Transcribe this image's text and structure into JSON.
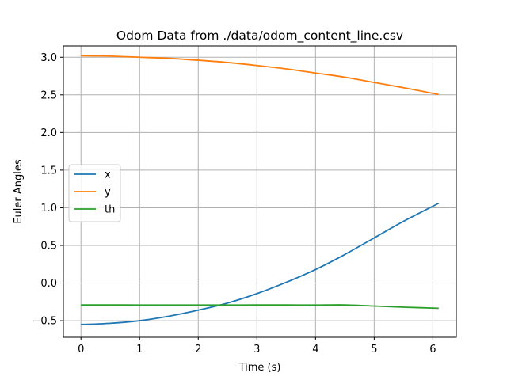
{
  "chart_data": {
    "type": "line",
    "title": "Odom Data from ./data/odom_content_line.csv",
    "xlabel": "Time (s)",
    "ylabel": "Euler Angles",
    "xlim": [
      -0.3,
      6.4
    ],
    "ylim": [
      -0.72,
      3.15
    ],
    "xticks": [
      0,
      1,
      2,
      3,
      4,
      5,
      6
    ],
    "yticks": [
      -0.5,
      0.0,
      0.5,
      1.0,
      1.5,
      2.0,
      2.5,
      3.0
    ],
    "xtick_labels": [
      "0",
      "1",
      "2",
      "3",
      "4",
      "5",
      "6"
    ],
    "ytick_labels": [
      "−0.5",
      "0.0",
      "0.5",
      "1.0",
      "1.5",
      "2.0",
      "2.5",
      "3.0"
    ],
    "grid": true,
    "legend_position": "center-left",
    "series": [
      {
        "name": "x",
        "color": "#1f77b4",
        "x": [
          0,
          0.5,
          1.0,
          1.5,
          2.0,
          2.5,
          3.0,
          3.5,
          4.0,
          4.5,
          5.0,
          5.5,
          6.1
        ],
        "y": [
          -0.55,
          -0.535,
          -0.5,
          -0.44,
          -0.36,
          -0.265,
          -0.14,
          0.01,
          0.18,
          0.38,
          0.6,
          0.82,
          1.06
        ]
      },
      {
        "name": "y",
        "color": "#ff7f0e",
        "x": [
          0,
          0.5,
          1.0,
          1.5,
          2.0,
          2.5,
          3.0,
          3.5,
          4.0,
          4.5,
          5.0,
          5.5,
          6.1
        ],
        "y": [
          3.02,
          3.015,
          3.0,
          2.985,
          2.96,
          2.93,
          2.89,
          2.845,
          2.79,
          2.735,
          2.665,
          2.595,
          2.505
        ]
      },
      {
        "name": "th",
        "color": "#2ca02c",
        "x": [
          0,
          0.5,
          1.0,
          1.5,
          2.0,
          2.5,
          3.0,
          3.5,
          4.0,
          4.5,
          5.0,
          5.5,
          6.1
        ],
        "y": [
          -0.29,
          -0.29,
          -0.292,
          -0.292,
          -0.292,
          -0.292,
          -0.291,
          -0.291,
          -0.292,
          -0.29,
          -0.305,
          -0.32,
          -0.335
        ]
      }
    ]
  }
}
